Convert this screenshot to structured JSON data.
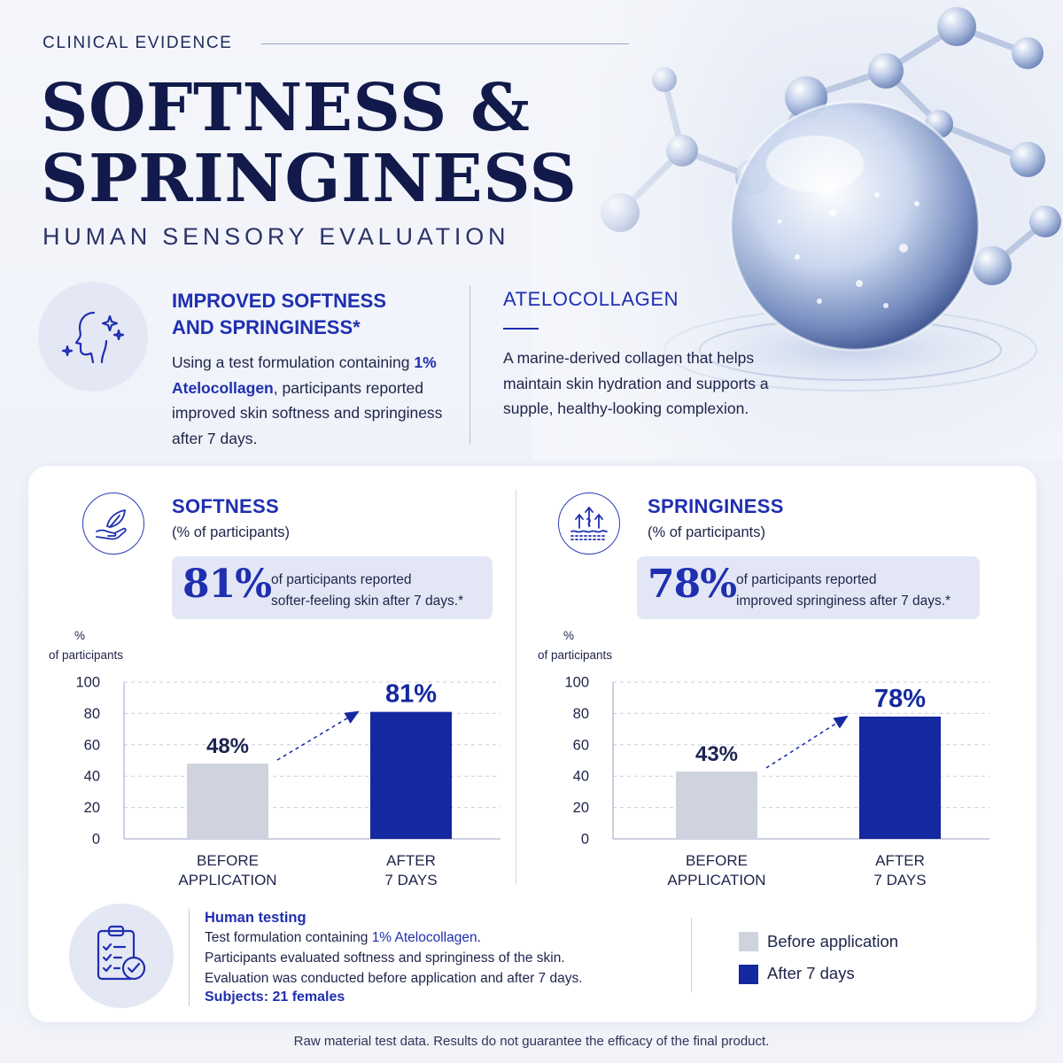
{
  "header": {
    "eyebrow": "CLINICAL EVIDENCE",
    "title_line1": "SOFTNESS &",
    "title_line2": "SPRINGINESS",
    "subtitle": "HUMAN SENSORY EVALUATION"
  },
  "intro": {
    "heading_line1": "IMPROVED SOFTNESS",
    "heading_line2": "AND SPRINGINESS*",
    "text_before": "Using a test formulation containing",
    "highlight": "1% Atelocollagen",
    "text_after": ", participants reported improved skin softness and springiness after 7 days."
  },
  "ingredient": {
    "name": "ATELOCOLLAGEN",
    "description": "A marine-derived collagen that helps maintain skin hydration and supports a supple, healthy-looking complexion."
  },
  "panels": {
    "softness": {
      "title": "SOFTNESS",
      "subtitle": "(% of participants)",
      "stat": "81%",
      "stat_line1": "of participants reported",
      "stat_line2": "softer-feeling skin after 7 days.*",
      "icon": "feather-hand-icon"
    },
    "springiness": {
      "title": "SPRINGINESS",
      "subtitle": "(% of participants)",
      "stat": "78%",
      "stat_line1": "of participants reported",
      "stat_line2": "improved springiness after 7 days.*",
      "icon": "spring-arrows-icon"
    }
  },
  "chart_data": [
    {
      "type": "bar",
      "name": "softness",
      "ylabel": "% of participants",
      "categories": [
        "BEFORE APPLICATION",
        "AFTER 7 DAYS"
      ],
      "values": [
        48,
        81
      ],
      "value_labels": [
        "48%",
        "81%"
      ],
      "ylim": [
        0,
        100
      ],
      "yticks": [
        0,
        20,
        40,
        60,
        80,
        100
      ],
      "grid": true
    },
    {
      "type": "bar",
      "name": "springiness",
      "ylabel": "% of participants",
      "categories": [
        "BEFORE APPLICATION",
        "AFTER 7 DAYS"
      ],
      "values": [
        43,
        78
      ],
      "value_labels": [
        "43%",
        "78%"
      ],
      "ylim": [
        0,
        100
      ],
      "yticks": [
        0,
        20,
        40,
        60,
        80,
        100
      ],
      "grid": true
    }
  ],
  "testing": {
    "title": "Human testing",
    "line1_before": "Test formulation containing ",
    "line1_highlight": "1% Atelocollagen",
    "line1_after": ".",
    "line2": "Participants evaluated softness and springiness of the skin.",
    "line3": "Evaluation was conducted before application and after 7 days.",
    "subjects": "Subjects: 21 females",
    "icon": "clipboard-check-icon"
  },
  "legend": {
    "before": "Before application",
    "after": "After 7 days"
  },
  "colors": {
    "before": "#cfd3de",
    "after": "#1428a0",
    "accent": "#1f2fb0",
    "navy": "#111a4a"
  },
  "disclaimer": "Raw material test data. Results do not guarantee the efficacy of the final product."
}
